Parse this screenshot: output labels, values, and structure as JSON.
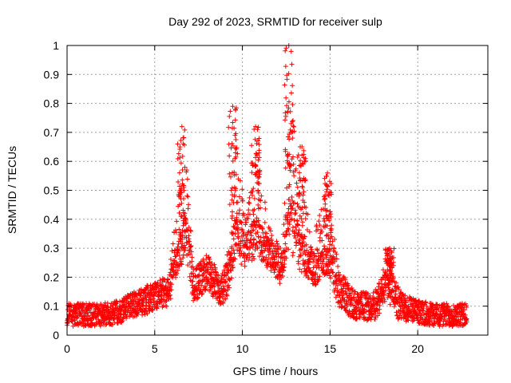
{
  "chart_data": {
    "type": "scatter",
    "title": "Day 292 of 2023, SRMTID for receiver sulp",
    "xlabel": "GPS time / hours",
    "ylabel": "SRMTID / TECUs",
    "xlim": [
      0,
      24
    ],
    "ylim": [
      0,
      1
    ],
    "xticks": [
      "0",
      "5",
      "10",
      "15",
      "20"
    ],
    "yticks": [
      "0",
      "0.1",
      "0.2",
      "0.3",
      "0.4",
      "0.5",
      "0.6",
      "0.7",
      "0.8",
      "0.9",
      "1"
    ],
    "grid": true,
    "marker": "plus",
    "color": "#ff0000",
    "data_extent_hours": [
      0,
      22.8
    ],
    "envelope": {
      "description": "Sampled trend of the scatter cloud: baseline level and local spread by hour",
      "points": [
        {
          "t": 0.0,
          "base": 0.07,
          "spread": 0.04
        },
        {
          "t": 1.0,
          "base": 0.07,
          "spread": 0.04
        },
        {
          "t": 2.0,
          "base": 0.07,
          "spread": 0.04
        },
        {
          "t": 3.0,
          "base": 0.08,
          "spread": 0.04
        },
        {
          "t": 3.5,
          "base": 0.1,
          "spread": 0.04
        },
        {
          "t": 4.5,
          "base": 0.12,
          "spread": 0.05
        },
        {
          "t": 5.0,
          "base": 0.14,
          "spread": 0.05
        },
        {
          "t": 5.8,
          "base": 0.15,
          "spread": 0.05
        },
        {
          "t": 6.3,
          "base": 0.28,
          "spread": 0.2
        },
        {
          "t": 6.8,
          "base": 0.35,
          "spread": 0.3
        },
        {
          "t": 7.2,
          "base": 0.17,
          "spread": 0.06
        },
        {
          "t": 8.0,
          "base": 0.22,
          "spread": 0.07
        },
        {
          "t": 8.8,
          "base": 0.15,
          "spread": 0.05
        },
        {
          "t": 9.3,
          "base": 0.22,
          "spread": 0.1
        },
        {
          "t": 9.6,
          "base": 0.35,
          "spread": 0.35
        },
        {
          "t": 10.2,
          "base": 0.28,
          "spread": 0.12
        },
        {
          "t": 10.8,
          "base": 0.35,
          "spread": 0.3
        },
        {
          "t": 11.5,
          "base": 0.28,
          "spread": 0.1
        },
        {
          "t": 12.3,
          "base": 0.22,
          "spread": 0.08
        },
        {
          "t": 12.7,
          "base": 0.45,
          "spread": 0.5
        },
        {
          "t": 13.3,
          "base": 0.3,
          "spread": 0.3
        },
        {
          "t": 14.0,
          "base": 0.22,
          "spread": 0.1
        },
        {
          "t": 14.8,
          "base": 0.28,
          "spread": 0.25
        },
        {
          "t": 15.5,
          "base": 0.16,
          "spread": 0.07
        },
        {
          "t": 16.5,
          "base": 0.1,
          "spread": 0.05
        },
        {
          "t": 17.5,
          "base": 0.1,
          "spread": 0.05
        },
        {
          "t": 18.3,
          "base": 0.18,
          "spread": 0.1
        },
        {
          "t": 19.0,
          "base": 0.1,
          "spread": 0.05
        },
        {
          "t": 20.0,
          "base": 0.08,
          "spread": 0.04
        },
        {
          "t": 21.0,
          "base": 0.07,
          "spread": 0.04
        },
        {
          "t": 22.0,
          "base": 0.07,
          "spread": 0.04
        },
        {
          "t": 22.8,
          "base": 0.07,
          "spread": 0.04
        }
      ]
    },
    "highlight_peaks": [
      {
        "t": 6.55,
        "value": 0.72
      },
      {
        "t": 9.45,
        "value": 0.79
      },
      {
        "t": 10.75,
        "value": 0.72
      },
      {
        "t": 12.65,
        "value": 1.0
      },
      {
        "t": 13.4,
        "value": 0.65
      },
      {
        "t": 14.85,
        "value": 0.56
      },
      {
        "t": 18.4,
        "value": 0.3
      }
    ]
  }
}
